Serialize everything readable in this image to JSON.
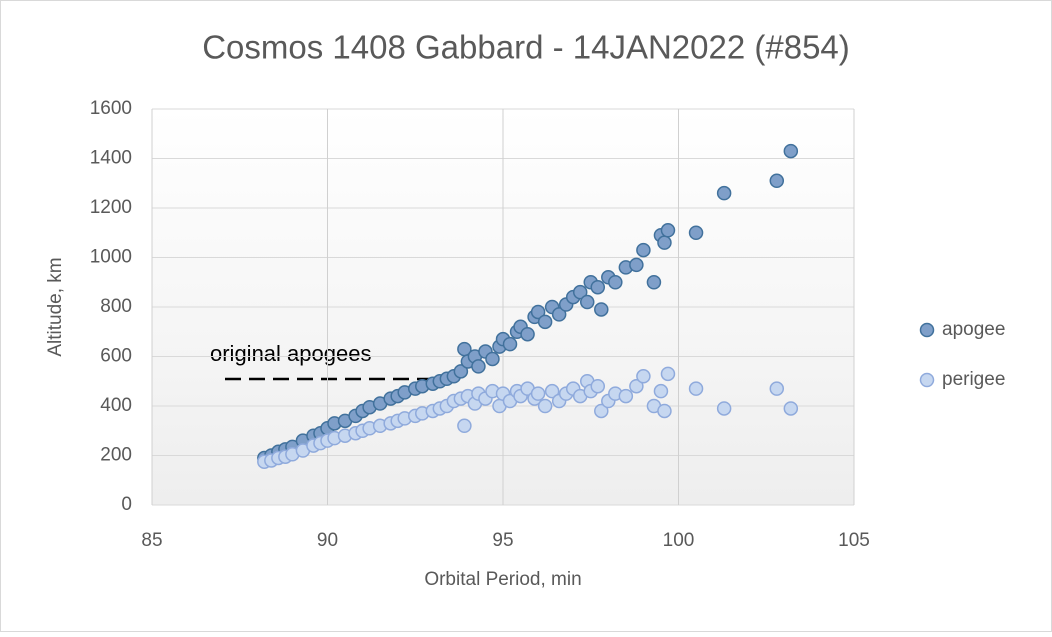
{
  "chart_data": {
    "type": "scatter",
    "title": "Cosmos 1408 Gabbard - 14JAN2022 (#854)",
    "x_label": "Orbital Period, min",
    "y_label": "Altitude, km",
    "annotation": "original apogees",
    "xlim": [
      85,
      105
    ],
    "xticks": [
      85,
      90,
      95,
      100,
      105
    ],
    "ylim": [
      0,
      1600
    ],
    "yticks": [
      0,
      200,
      400,
      600,
      800,
      1000,
      1200,
      1400,
      1600
    ],
    "grid": true,
    "legend": "right",
    "x": [
      88.2,
      88.4,
      88.6,
      88.8,
      89.0,
      89.3,
      89.6,
      89.8,
      90.0,
      90.2,
      90.5,
      90.8,
      91.0,
      91.2,
      91.5,
      91.8,
      92.0,
      92.2,
      92.5,
      92.7,
      93.0,
      93.2,
      93.4,
      93.6,
      93.8,
      93.9,
      94.0,
      94.2,
      94.3,
      94.5,
      94.7,
      94.9,
      95.0,
      95.2,
      95.4,
      95.5,
      95.7,
      95.9,
      96.0,
      96.2,
      96.4,
      96.6,
      96.8,
      97.0,
      97.2,
      97.4,
      97.5,
      97.7,
      97.8,
      98.0,
      98.2,
      98.5,
      98.8,
      99.0,
      99.3,
      99.5,
      99.6,
      99.7,
      100.5,
      101.3,
      102.8,
      103.2
    ],
    "series": [
      {
        "name": "apogee",
        "color": "#7f9fc9",
        "stroke": "#41719c",
        "values": [
          190,
          200,
          215,
          225,
          235,
          260,
          280,
          290,
          310,
          330,
          340,
          360,
          380,
          395,
          410,
          430,
          440,
          455,
          470,
          480,
          490,
          500,
          510,
          520,
          540,
          630,
          580,
          600,
          560,
          620,
          590,
          640,
          670,
          650,
          700,
          720,
          690,
          760,
          780,
          740,
          800,
          770,
          810,
          840,
          860,
          820,
          900,
          880,
          790,
          920,
          900,
          960,
          970,
          1030,
          900,
          1090,
          1060,
          1110,
          1100,
          1260,
          1310,
          1430
        ]
      },
      {
        "name": "perigee",
        "color": "#c6d7f0",
        "stroke": "#8faadc",
        "values": [
          175,
          180,
          190,
          195,
          205,
          220,
          240,
          250,
          260,
          270,
          280,
          290,
          300,
          310,
          320,
          330,
          340,
          350,
          360,
          370,
          380,
          390,
          400,
          420,
          430,
          320,
          440,
          410,
          450,
          430,
          460,
          400,
          450,
          420,
          460,
          440,
          470,
          430,
          450,
          400,
          460,
          420,
          450,
          470,
          440,
          500,
          460,
          480,
          380,
          420,
          450,
          440,
          480,
          520,
          400,
          460,
          380,
          530,
          470,
          390,
          470,
          390
        ]
      }
    ]
  }
}
